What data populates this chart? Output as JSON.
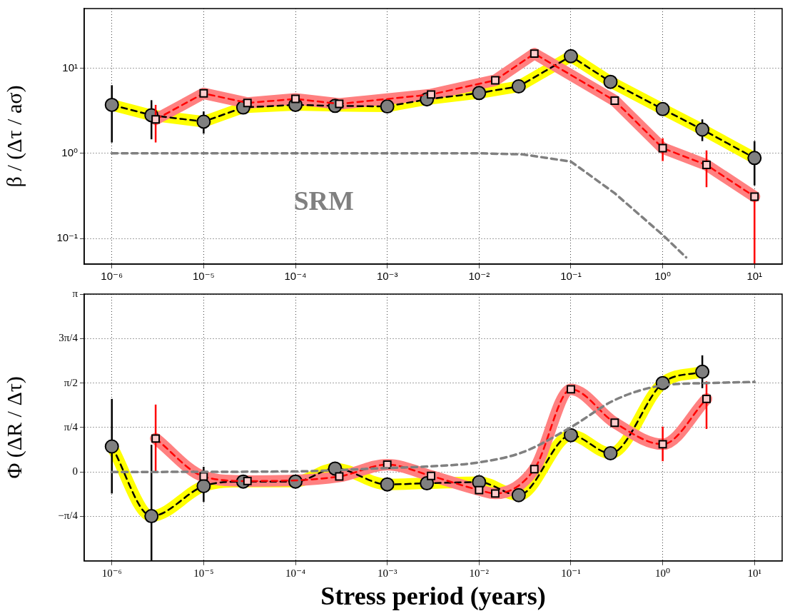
{
  "chart_data": [
    {
      "type": "line",
      "ylabel": "β / (Δτ / aσ)",
      "log": "xy",
      "grid": true,
      "legend": false,
      "xlim": [
        5e-07,
        20
      ],
      "xticks": [
        {
          "value": 1e-06,
          "label": "10⁻⁶"
        },
        {
          "value": 1e-05,
          "label": "10⁻⁵"
        },
        {
          "value": 0.0001,
          "label": "10⁻⁴"
        },
        {
          "value": 0.001,
          "label": "10⁻³"
        },
        {
          "value": 0.01,
          "label": "10⁻²"
        },
        {
          "value": 0.1,
          "label": "10⁻¹"
        },
        {
          "value": 1,
          "label": "10⁰"
        },
        {
          "value": 10,
          "label": "10¹"
        }
      ],
      "ylim": [
        0.05,
        50
      ],
      "yticks": [
        {
          "value": 0.1,
          "label": "10⁻¹"
        },
        {
          "value": 1,
          "label": "10⁰"
        },
        {
          "value": 10,
          "label": "10¹"
        }
      ],
      "series": [
        {
          "color": "#ffff00",
          "marker": "circle",
          "line_style": "solid",
          "x": [
            1e-06,
            2.7e-06,
            1e-05,
            2.7e-05,
            0.0001,
            0.00027,
            0.001,
            0.0027,
            0.01,
            0.027,
            0.1,
            0.27,
            1,
            2.7,
            10
          ],
          "values": [
            3.7,
            2.8,
            2.35,
            3.45,
            3.7,
            3.6,
            3.55,
            4.3,
            5.1,
            6.1,
            13.8,
            6.9,
            3.3,
            1.9,
            0.88
          ],
          "errors": [
            [
              1.34,
              6.3
            ],
            [
              1.46,
              4.2
            ],
            [
              1.7,
              3.1
            ],
            null,
            null,
            null,
            null,
            null,
            null,
            null,
            null,
            null,
            null,
            [
              1.39,
              2.5
            ],
            [
              0.42,
              1.39
            ]
          ]
        },
        {
          "color": "#ff8080",
          "marker": "square",
          "line_style": "solid",
          "x": [
            3e-06,
            1e-05,
            3e-05,
            0.0001,
            0.0003,
            0.001,
            0.003,
            0.01,
            0.015,
            0.04,
            0.1,
            0.3,
            1,
            3,
            10
          ],
          "values": [
            2.5,
            5.05,
            3.9,
            4.35,
            3.8,
            null,
            4.9,
            null,
            7.2,
            14.8,
            null,
            4.15,
            1.15,
            0.73,
            0.31
          ],
          "errors": [
            [
              1.34,
              3.7
            ],
            null,
            null,
            null,
            null,
            null,
            null,
            null,
            null,
            null,
            null,
            null,
            [
              0.81,
              1.5
            ],
            [
              0.4,
              1.08
            ],
            [
              0.05,
              0.31
            ]
          ]
        },
        {
          "name": "SRM",
          "color": "#808080",
          "marker": "none",
          "line_style": "dashed",
          "x": [
            1e-06,
            0.001,
            0.01,
            0.03,
            0.1,
            0.3,
            1,
            1.8
          ],
          "values": [
            1,
            1,
            1,
            0.97,
            0.8,
            0.34,
            0.11,
            0.06
          ]
        }
      ]
    },
    {
      "type": "line",
      "ylabel": "Φ (ΔR / Δτ)",
      "xlabel": "Stress period (years)",
      "log": "x",
      "grid": true,
      "legend": false,
      "xlim": [
        5e-07,
        20
      ],
      "xticks": [
        {
          "value": 1e-06,
          "label": "10⁻⁶"
        },
        {
          "value": 1e-05,
          "label": "10⁻⁵"
        },
        {
          "value": 0.0001,
          "label": "10⁻⁴"
        },
        {
          "value": 0.001,
          "label": "10⁻³"
        },
        {
          "value": 0.01,
          "label": "10⁻²"
        },
        {
          "value": 0.1,
          "label": "10⁻¹"
        },
        {
          "value": 1,
          "label": "10⁰"
        },
        {
          "value": 10,
          "label": "10¹"
        }
      ],
      "ylim": [
        -1.5708,
        3.1416
      ],
      "yticks": [
        {
          "value": -0.7854,
          "label": "−π/4"
        },
        0,
        {
          "value": 0.7854,
          "label": "π/4"
        },
        {
          "value": 1.5708,
          "label": "π/2"
        },
        {
          "value": 2.3562,
          "label": "3π/4"
        },
        {
          "value": 3.1416,
          "label": "π"
        }
      ],
      "series": [
        {
          "color": "#ffff00",
          "marker": "circle",
          "line_style": "solid",
          "x": [
            1e-06,
            2.7e-06,
            1e-05,
            2.7e-05,
            0.0001,
            0.00027,
            0.001,
            0.0027,
            0.01,
            0.027,
            0.1,
            0.27,
            1,
            2.7
          ],
          "values": [
            0.45,
            -0.78,
            -0.25,
            -0.17,
            -0.17,
            0.06,
            -0.22,
            -0.2,
            -0.18,
            -0.41,
            0.65,
            0.33,
            1.57,
            1.77
          ],
          "errors": [
            [
              -0.38,
              1.29
            ],
            [
              -1.5708,
              0.48
            ],
            [
              -0.53,
              0.09
            ],
            null,
            null,
            null,
            null,
            null,
            null,
            null,
            null,
            null,
            null,
            [
              1.48,
              2.06
            ]
          ]
        },
        {
          "color": "#ff8080",
          "marker": "square",
          "line_style": "solid",
          "x": [
            3e-06,
            1e-05,
            3e-05,
            0.0001,
            0.0003,
            0.001,
            0.003,
            0.01,
            0.015,
            0.04,
            0.1,
            0.3,
            1,
            3
          ],
          "values": [
            0.59,
            -0.08,
            -0.16,
            null,
            -0.08,
            0.13,
            -0.07,
            -0.32,
            -0.38,
            0.05,
            1.46,
            0.87,
            0.49,
            1.29
          ],
          "errors": [
            [
              -0.02,
              1.19
            ],
            null,
            null,
            null,
            null,
            null,
            null,
            null,
            null,
            null,
            null,
            null,
            [
              0.19,
              0.8
            ],
            [
              0.76,
              1.6
            ]
          ]
        },
        {
          "color": "#808080",
          "marker": "none",
          "line_style": "dashed",
          "x": [
            1e-06,
            0.0001,
            0.001,
            0.003,
            0.01,
            0.03,
            0.1,
            0.3,
            1,
            3,
            10
          ],
          "values": [
            0,
            0.01,
            0.07,
            0.1,
            0.17,
            0.35,
            0.79,
            1.27,
            1.53,
            1.57,
            1.59
          ]
        }
      ]
    }
  ]
}
